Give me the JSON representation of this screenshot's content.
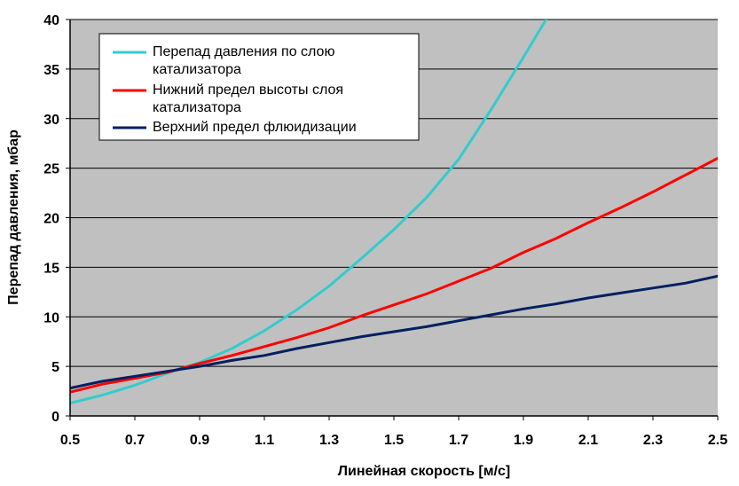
{
  "chart_data": {
    "type": "line",
    "title": "",
    "xlabel": "Линейная скорость [м/с]",
    "ylabel": "Перепад давления, мбар",
    "xlim": [
      0.5,
      2.5
    ],
    "ylim": [
      0,
      40
    ],
    "x_ticks": [
      "0.5",
      "0.7",
      "0.9",
      "1.1",
      "1.3",
      "1.5",
      "1.7",
      "1.9",
      "2.1",
      "2.3",
      "2.5"
    ],
    "y_ticks": [
      "0",
      "5",
      "10",
      "15",
      "20",
      "25",
      "30",
      "35",
      "40"
    ],
    "grid": "horizontal",
    "legend_placement": "top-left",
    "plot_background": "#c0c0c0",
    "series": [
      {
        "name": "Перепад давления по слою катализатора",
        "color": "#33cccc",
        "x": [
          0.5,
          0.6,
          0.7,
          0.8,
          0.9,
          1.0,
          1.1,
          1.2,
          1.3,
          1.4,
          1.5,
          1.6,
          1.7,
          1.8,
          1.9,
          1.97
        ],
        "y": [
          1.3,
          2.1,
          3.1,
          4.3,
          5.4,
          6.8,
          8.6,
          10.7,
          13.1,
          15.9,
          18.8,
          22.0,
          25.9,
          30.9,
          36.2,
          40.0
        ]
      },
      {
        "name": "Нижний предел высоты слоя катализатора",
        "color": "#ff0000",
        "x": [
          0.5,
          0.6,
          0.7,
          0.8,
          0.9,
          1.0,
          1.1,
          1.2,
          1.3,
          1.4,
          1.5,
          1.6,
          1.7,
          1.8,
          1.9,
          2.0,
          2.1,
          2.2,
          2.3,
          2.4,
          2.5
        ],
        "y": [
          2.4,
          3.2,
          3.8,
          4.4,
          5.3,
          6.1,
          7.0,
          7.9,
          8.9,
          10.1,
          11.2,
          12.3,
          13.6,
          14.9,
          16.5,
          17.9,
          19.5,
          21.0,
          22.6,
          24.3,
          26.0
        ]
      },
      {
        "name": "Верхний предел флюидизации",
        "color": "#002060",
        "x": [
          0.5,
          0.6,
          0.7,
          0.8,
          0.9,
          1.0,
          1.1,
          1.2,
          1.3,
          1.4,
          1.5,
          1.6,
          1.7,
          1.8,
          1.9,
          2.0,
          2.1,
          2.2,
          2.3,
          2.4,
          2.5
        ],
        "y": [
          2.8,
          3.5,
          4.0,
          4.5,
          5.0,
          5.6,
          6.1,
          6.8,
          7.4,
          8.0,
          8.5,
          9.0,
          9.6,
          10.2,
          10.8,
          11.3,
          11.9,
          12.4,
          12.9,
          13.4,
          14.1
        ]
      }
    ]
  }
}
